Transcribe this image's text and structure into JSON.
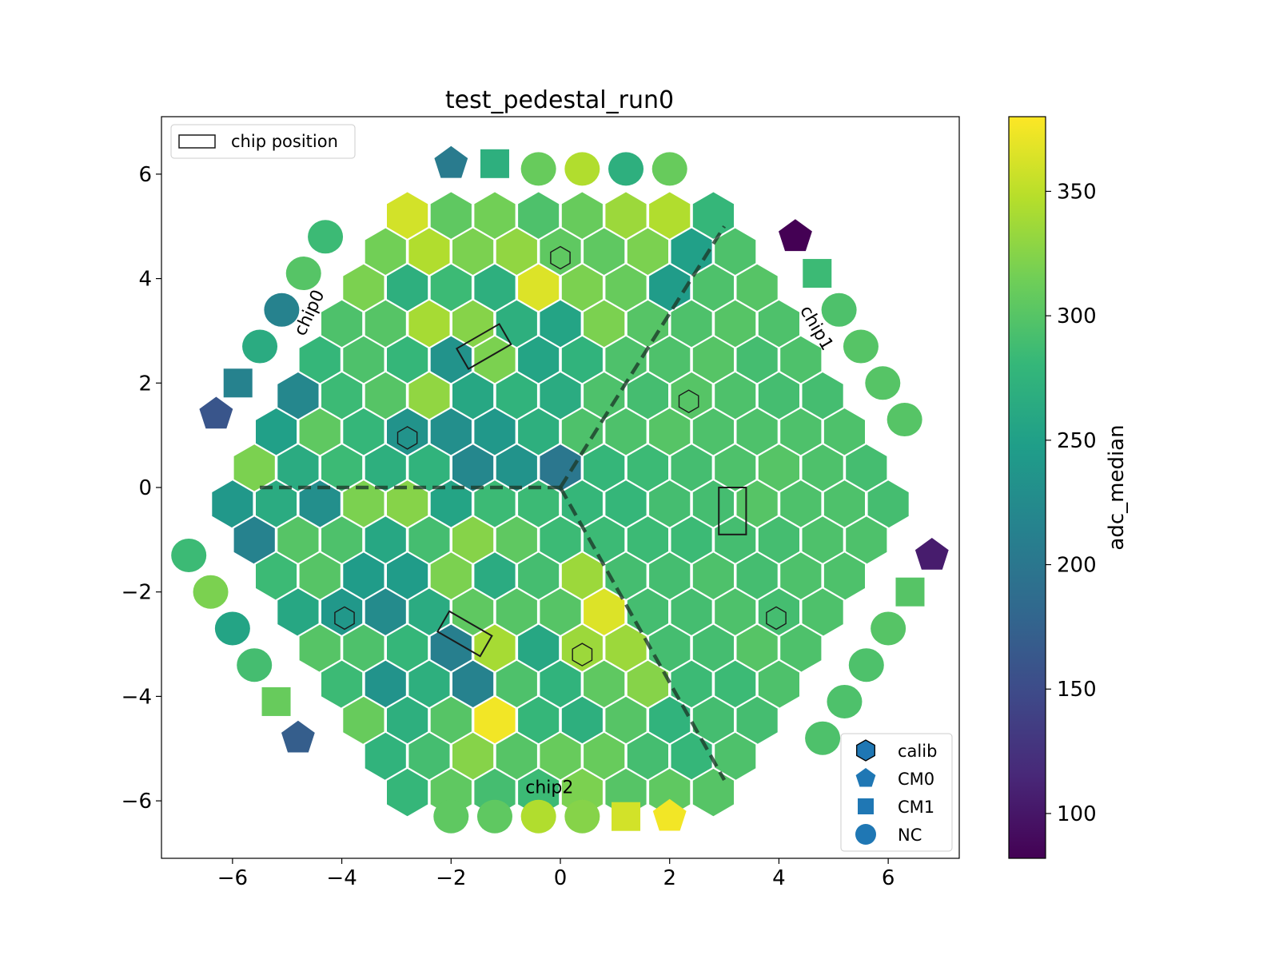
{
  "chart_data": {
    "type": "heatmap",
    "title": "test_pedestal_run0",
    "xlabel": "",
    "ylabel": "",
    "xlim": [
      -7.3,
      7.3
    ],
    "ylim": [
      -7.1,
      7.1
    ],
    "grid": false,
    "x_ticks": [
      -6,
      -4,
      -2,
      0,
      2,
      4,
      6
    ],
    "y_ticks": [
      -6,
      -4,
      -2,
      0,
      2,
      4,
      6
    ],
    "x_tick_labels": [
      "−6",
      "−4",
      "−2",
      "0",
      "2",
      "4",
      "6"
    ],
    "y_tick_labels": [
      "−6",
      "−4",
      "−2",
      "0",
      "2",
      "4",
      "6"
    ],
    "colorbar": {
      "label": "adc_median",
      "min": 82,
      "max": 380,
      "ticks": [
        100,
        150,
        200,
        250,
        300,
        350
      ],
      "tick_labels": [
        "100",
        "150",
        "200",
        "250",
        "300",
        "350"
      ],
      "colormap": "viridis"
    },
    "chip_labels": [
      {
        "text": "chip0",
        "x": -4.5,
        "y": 3.3,
        "rotation": -65
      },
      {
        "text": "chip1",
        "x": 4.6,
        "y": 3.0,
        "rotation": 60
      },
      {
        "text": "chip2",
        "x": -0.2,
        "y": -5.85,
        "rotation": 0
      }
    ],
    "legend_top": {
      "position": "upper-left",
      "entries": [
        {
          "label": "chip position",
          "marker": "rectangle"
        }
      ]
    },
    "legend_bottom": {
      "position": "lower-right",
      "entries": [
        {
          "label": "calib",
          "marker": "hexagon"
        },
        {
          "label": "CM0",
          "marker": "pentagon"
        },
        {
          "label": "CM1",
          "marker": "square"
        },
        {
          "label": "NC",
          "marker": "circle"
        }
      ],
      "marker_color": "#1f77b4"
    },
    "hex_value_rows": [
      [
        360,
        305,
        315,
        295,
        310,
        335,
        345,
        280
      ],
      [
        315,
        345,
        320,
        330,
        305,
        305,
        320,
        250,
        295
      ],
      [
        320,
        270,
        285,
        270,
        365,
        320,
        310,
        245,
        295,
        300
      ],
      [
        295,
        300,
        340,
        325,
        270,
        255,
        320,
        300,
        295,
        300,
        295
      ],
      [
        280,
        295,
        280,
        235,
        320,
        255,
        275,
        295,
        295,
        300,
        290,
        295
      ],
      [
        220,
        285,
        300,
        330,
        260,
        275,
        265,
        295,
        290,
        300,
        295,
        290,
        290
      ],
      [
        250,
        305,
        280,
        235,
        230,
        240,
        270,
        295,
        295,
        300,
        295,
        295,
        295,
        295
      ],
      [
        320,
        265,
        285,
        270,
        275,
        220,
        235,
        200,
        280,
        285,
        290,
        295,
        300,
        295,
        290
      ],
      [
        240,
        265,
        230,
        320,
        325,
        255,
        285,
        285,
        280,
        280,
        290,
        290,
        300,
        295,
        295,
        290
      ],
      [
        215,
        300,
        295,
        260,
        290,
        325,
        305,
        285,
        285,
        285,
        285,
        290,
        290,
        295,
        295
      ],
      [
        285,
        300,
        245,
        245,
        320,
        265,
        290,
        335,
        290,
        290,
        295,
        290,
        295,
        295
      ],
      [
        260,
        240,
        225,
        265,
        305,
        300,
        300,
        365,
        290,
        290,
        295,
        290,
        295
      ],
      [
        300,
        295,
        280,
        210,
        340,
        260,
        335,
        335,
        290,
        290,
        300,
        295
      ],
      [
        285,
        235,
        270,
        215,
        295,
        275,
        305,
        325,
        285,
        285,
        295
      ],
      [
        310,
        270,
        300,
        375,
        280,
        270,
        300,
        275,
        290,
        290
      ],
      [
        275,
        290,
        325,
        300,
        310,
        310,
        290,
        280,
        295
      ],
      [
        280,
        305,
        290,
        285,
        320,
        300,
        305,
        300
      ]
    ],
    "calib_cells": [
      {
        "x": 0.0,
        "y": 4.4
      },
      {
        "x": 2.35,
        "y": 1.65
      },
      {
        "x": -2.8,
        "y": 0.95
      },
      {
        "x": -3.95,
        "y": -2.5
      },
      {
        "x": 3.95,
        "y": -2.5
      },
      {
        "x": 0.4,
        "y": -3.2
      }
    ],
    "chip_positions": [
      {
        "x": -1.4,
        "y": 2.7,
        "width": 0.9,
        "height": 0.45,
        "angle": 30
      },
      {
        "x": 3.15,
        "y": -0.45,
        "width": 0.5,
        "height": 0.9,
        "angle": 0
      },
      {
        "x": -1.75,
        "y": -2.8,
        "width": 0.9,
        "height": 0.45,
        "angle": -30
      }
    ],
    "separator_lines": [
      [
        [
          -5.5,
          0
        ],
        [
          0,
          0
        ]
      ],
      [
        [
          0,
          0
        ],
        [
          3.0,
          5.0
        ]
      ],
      [
        [
          0,
          0
        ],
        [
          3.0,
          -5.6
        ]
      ]
    ],
    "edge_markers": [
      {
        "marker": "pentagon",
        "x": -2.0,
        "y": 6.2,
        "value": 205
      },
      {
        "marker": "square",
        "x": -1.2,
        "y": 6.2,
        "value": 270
      },
      {
        "marker": "circle",
        "x": -0.4,
        "y": 6.1,
        "value": 310
      },
      {
        "marker": "circle",
        "x": 0.4,
        "y": 6.1,
        "value": 345
      },
      {
        "marker": "circle",
        "x": 1.2,
        "y": 6.1,
        "value": 270
      },
      {
        "marker": "circle",
        "x": 2.0,
        "y": 6.1,
        "value": 310
      },
      {
        "marker": "circle",
        "x": -4.3,
        "y": 4.8,
        "value": 285
      },
      {
        "marker": "circle",
        "x": -4.7,
        "y": 4.1,
        "value": 300
      },
      {
        "marker": "circle",
        "x": -5.1,
        "y": 3.4,
        "value": 215
      },
      {
        "marker": "circle",
        "x": -5.5,
        "y": 2.7,
        "value": 265
      },
      {
        "marker": "square",
        "x": -5.9,
        "y": 2.0,
        "value": 215
      },
      {
        "marker": "pentagon",
        "x": -6.3,
        "y": 1.4,
        "value": 160
      },
      {
        "marker": "pentagon",
        "x": 4.3,
        "y": 4.8,
        "value": 82
      },
      {
        "marker": "square",
        "x": 4.7,
        "y": 4.1,
        "value": 285
      },
      {
        "marker": "circle",
        "x": 5.1,
        "y": 3.4,
        "value": 295
      },
      {
        "marker": "circle",
        "x": 5.5,
        "y": 2.7,
        "value": 300
      },
      {
        "marker": "circle",
        "x": 5.9,
        "y": 2.0,
        "value": 300
      },
      {
        "marker": "circle",
        "x": 6.3,
        "y": 1.3,
        "value": 300
      },
      {
        "marker": "circle",
        "x": -6.8,
        "y": -1.3,
        "value": 285
      },
      {
        "marker": "circle",
        "x": -6.4,
        "y": -2.0,
        "value": 320
      },
      {
        "marker": "circle",
        "x": -6.0,
        "y": -2.7,
        "value": 255
      },
      {
        "marker": "circle",
        "x": -5.6,
        "y": -3.4,
        "value": 290
      },
      {
        "marker": "square",
        "x": -5.2,
        "y": -4.1,
        "value": 310
      },
      {
        "marker": "pentagon",
        "x": -4.8,
        "y": -4.8,
        "value": 170
      },
      {
        "marker": "pentagon",
        "x": 6.8,
        "y": -1.3,
        "value": 105
      },
      {
        "marker": "square",
        "x": 6.4,
        "y": -2.0,
        "value": 300
      },
      {
        "marker": "circle",
        "x": 6.0,
        "y": -2.7,
        "value": 300
      },
      {
        "marker": "circle",
        "x": 5.6,
        "y": -3.4,
        "value": 295
      },
      {
        "marker": "circle",
        "x": 5.2,
        "y": -4.1,
        "value": 295
      },
      {
        "marker": "circle",
        "x": 4.8,
        "y": -4.8,
        "value": 295
      },
      {
        "marker": "circle",
        "x": -2.0,
        "y": -6.3,
        "value": 305
      },
      {
        "marker": "circle",
        "x": -1.2,
        "y": -6.3,
        "value": 305
      },
      {
        "marker": "circle",
        "x": -0.4,
        "y": -6.3,
        "value": 345
      },
      {
        "marker": "circle",
        "x": 0.4,
        "y": -6.3,
        "value": 325
      },
      {
        "marker": "square",
        "x": 1.2,
        "y": -6.3,
        "value": 360
      },
      {
        "marker": "pentagon",
        "x": 2.0,
        "y": -6.3,
        "value": 375
      }
    ]
  }
}
